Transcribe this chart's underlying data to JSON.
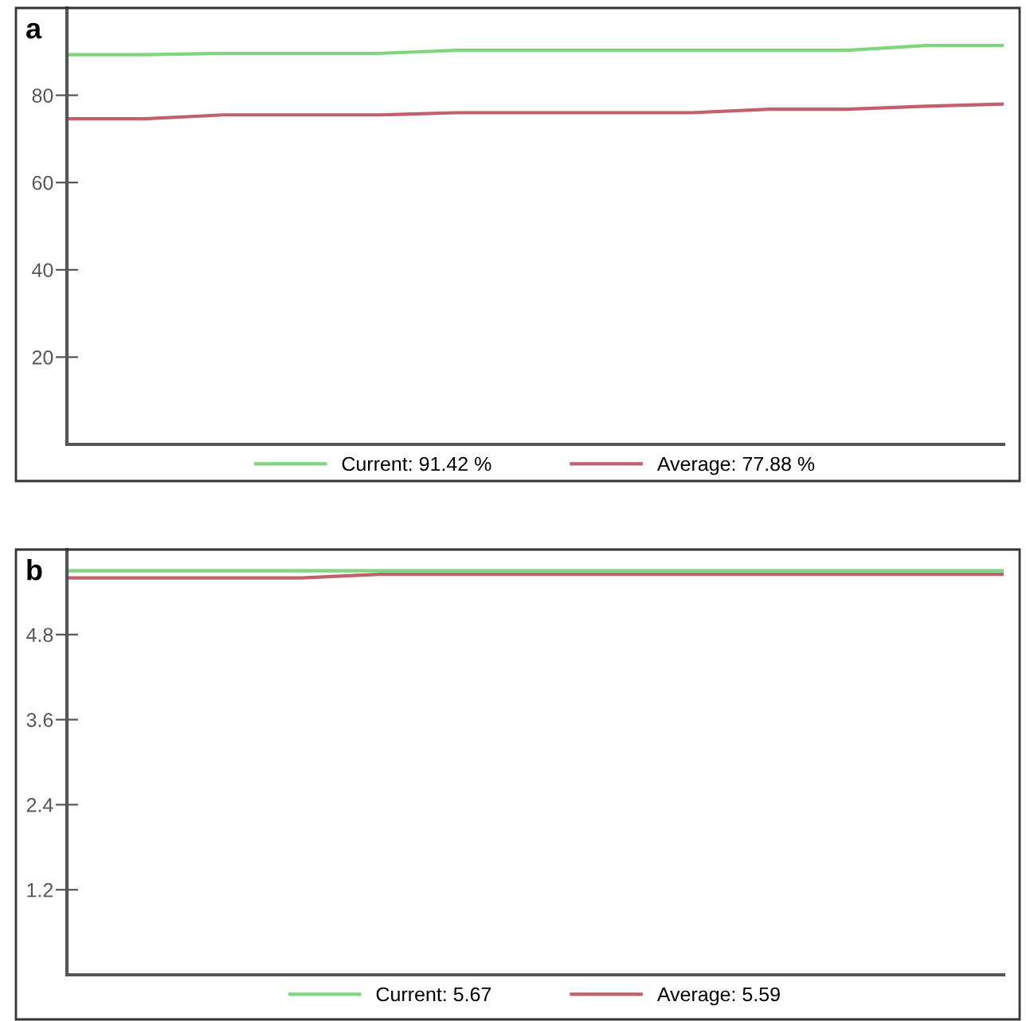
{
  "chart_data": [
    {
      "type": "line",
      "title": "a",
      "categories": [
        null,
        null,
        null,
        null,
        null,
        null,
        null,
        null,
        null,
        null,
        null,
        null,
        null
      ],
      "series": [
        {
          "name": "Current: 91.42 %",
          "color": "#7ed67e",
          "values": [
            89.3,
            89.3,
            89.6,
            89.6,
            89.6,
            90.3,
            90.3,
            90.3,
            90.3,
            90.3,
            90.3,
            91.4,
            91.4
          ]
        },
        {
          "name": "Average: 77.88 %",
          "color": "#c2606e",
          "values": [
            74.6,
            74.6,
            75.5,
            75.5,
            75.5,
            76.0,
            76.0,
            76.0,
            76.0,
            76.8,
            76.8,
            77.5,
            78.0
          ]
        }
      ],
      "ylim": [
        0,
        100
      ],
      "yticks": [
        20,
        40,
        60,
        80
      ],
      "legend": "bottom",
      "grid": false
    },
    {
      "type": "line",
      "title": "b",
      "categories": [
        null,
        null,
        null,
        null,
        null,
        null,
        null,
        null,
        null,
        null,
        null,
        null,
        null
      ],
      "series": [
        {
          "name": "Current: 5.67",
          "color": "#7ed67e",
          "values": [
            5.7,
            5.7,
            5.7,
            5.7,
            5.7,
            5.7,
            5.7,
            5.7,
            5.7,
            5.7,
            5.7,
            5.7,
            5.7
          ]
        },
        {
          "name": "Average: 5.59",
          "color": "#c2606e",
          "values": [
            5.6,
            5.6,
            5.6,
            5.6,
            5.65,
            5.65,
            5.65,
            5.65,
            5.65,
            5.65,
            5.65,
            5.65,
            5.65
          ]
        }
      ],
      "ylim": [
        0,
        6
      ],
      "yticks": [
        1.2,
        2.4,
        3.6,
        4.8
      ],
      "legend": "bottom",
      "grid": false
    }
  ]
}
